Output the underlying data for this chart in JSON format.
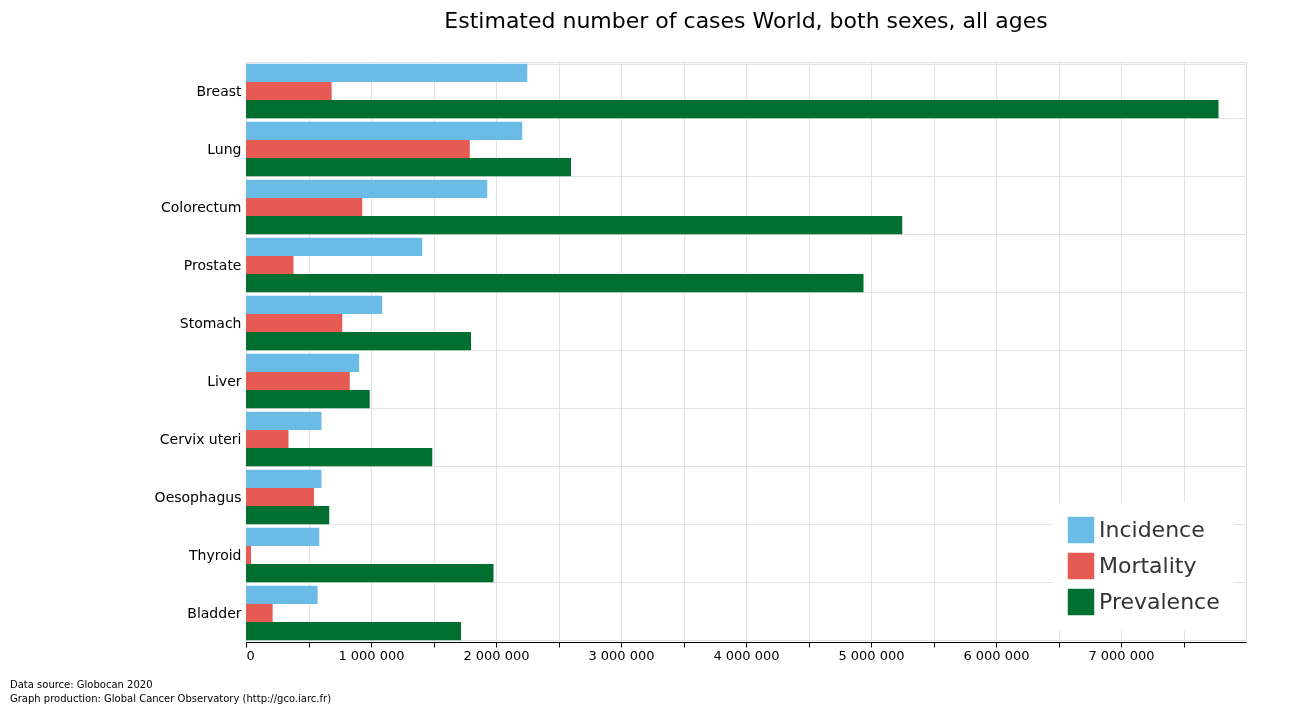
{
  "chart_data": {
    "type": "bar",
    "orientation": "horizontal",
    "title": "Estimated number of cases World, both sexes, all ages",
    "categories": [
      "Breast",
      "Lung",
      "Colorectum",
      "Prostate",
      "Stomach",
      "Liver",
      "Cervix uteri",
      "Oesophagus",
      "Thyroid",
      "Bladder"
    ],
    "series": [
      {
        "name": "Incidence",
        "color": "#6bbbe7",
        "values": [
          2250000,
          2210000,
          1930000,
          1410000,
          1090000,
          905000,
          604000,
          604000,
          586000,
          573000
        ]
      },
      {
        "name": "Mortality",
        "color": "#e55a52",
        "values": [
          685000,
          1790000,
          930000,
          380000,
          770000,
          830000,
          340000,
          544000,
          40000,
          213000
        ]
      },
      {
        "name": "Prevalence",
        "color": "#006f2f",
        "values": [
          7780000,
          2600000,
          5250000,
          4940000,
          1800000,
          990000,
          1490000,
          666000,
          1980000,
          1720000
        ]
      }
    ],
    "xlim": [
      0,
      8000000
    ],
    "xticks": [
      0,
      {
        "value": 500000,
        "label": null
      },
      {
        "value": 1000000,
        "label": "1 000 000"
      },
      {
        "value": 1500000,
        "label": null
      },
      {
        "value": 2000000,
        "label": "2 000 000"
      },
      {
        "value": 2500000,
        "label": null
      },
      {
        "value": 3000000,
        "label": "3 000 000"
      },
      {
        "value": 3500000,
        "label": null
      },
      {
        "value": 4000000,
        "label": "4 000 000"
      },
      {
        "value": 4500000,
        "label": null
      },
      {
        "value": 5000000,
        "label": "5 000 000"
      },
      {
        "value": 5500000,
        "label": null
      },
      {
        "value": 6000000,
        "label": "6 000 000"
      },
      {
        "value": 6500000,
        "label": null
      },
      {
        "value": 7000000,
        "label": "7 000 000"
      },
      {
        "value": 7500000,
        "label": null
      }
    ],
    "grid": true,
    "legend": "bottom right",
    "annotations": [
      "Data source: Globocan 2020",
      "Graph production: Global Cancer Observatory (http://gco.iarc.fr)"
    ]
  }
}
